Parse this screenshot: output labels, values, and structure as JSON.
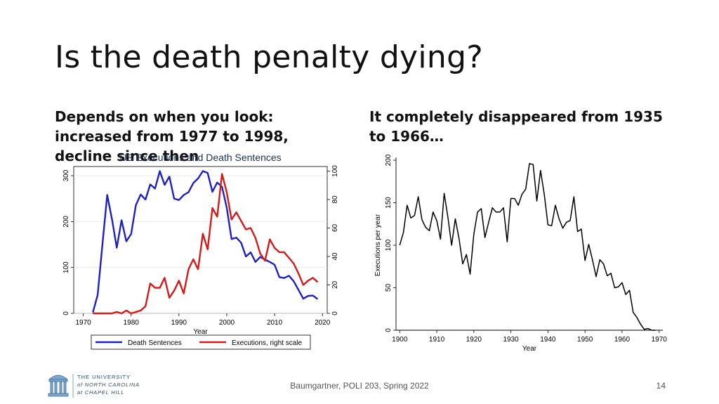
{
  "slide": {
    "title": "Is the death penalty dying?",
    "left_heading": "Depends on when you look: increased from 1977 to 1998, decline since then",
    "right_heading": "It completely disappeared from 1935 to 1966…",
    "footer": "Baumgartner, POLI 203, Spring 2022",
    "page_number": "14",
    "logo_lines": [
      "THE UNIVERSITY",
      "of NORTH CAROLINA",
      "at CHAPEL HILL"
    ]
  },
  "colors": {
    "death_sentences": "#1f1fc8",
    "executions": "#d61a1a",
    "black_line": "#000000"
  },
  "chart_data": [
    {
      "type": "line",
      "title": "US Executions and Death Sentences",
      "xlabel": "Year",
      "xlim": [
        1968,
        2021
      ],
      "xticks": [
        "1970",
        "1980",
        "1990",
        "2000",
        "2010",
        "2020"
      ],
      "y_left": {
        "lim": [
          0,
          320
        ],
        "ticks": [
          "0",
          "100",
          "200",
          "300"
        ]
      },
      "y_right": {
        "lim": [
          0,
          103.2
        ],
        "ticks": [
          "0",
          "20",
          "40",
          "60",
          "80",
          "100"
        ]
      },
      "legend": {
        "placement": "bottom",
        "entries": [
          "Death Sentences",
          "Executions, right scale"
        ]
      },
      "series": [
        {
          "name": "Death Sentences",
          "axis": "left",
          "x": [
            1972,
            1973,
            1974,
            1975,
            1976,
            1977,
            1978,
            1979,
            1980,
            1981,
            1982,
            1983,
            1984,
            1985,
            1986,
            1987,
            1988,
            1989,
            1990,
            1991,
            1992,
            1993,
            1994,
            1995,
            1996,
            1997,
            1998,
            1999,
            2000,
            2001,
            2002,
            2003,
            2004,
            2005,
            2006,
            2007,
            2008,
            2009,
            2010,
            2011,
            2012,
            2013,
            2014,
            2015,
            2016,
            2017,
            2018,
            2019
          ],
          "y": [
            2,
            40,
            150,
            258,
            205,
            143,
            203,
            157,
            173,
            236,
            259,
            248,
            281,
            272,
            310,
            280,
            298,
            250,
            247,
            258,
            264,
            284,
            294,
            310,
            306,
            265,
            285,
            276,
            230,
            162,
            165,
            154,
            124,
            133,
            112,
            123,
            117,
            112,
            106,
            79,
            77,
            82,
            70,
            51,
            32,
            38,
            39,
            31
          ]
        },
        {
          "name": "Executions, right scale",
          "axis": "right",
          "x": [
            1972,
            1973,
            1974,
            1975,
            1976,
            1977,
            1978,
            1979,
            1980,
            1981,
            1982,
            1983,
            1984,
            1985,
            1986,
            1987,
            1988,
            1989,
            1990,
            1991,
            1992,
            1993,
            1994,
            1995,
            1996,
            1997,
            1998,
            1999,
            2000,
            2001,
            2002,
            2003,
            2004,
            2005,
            2006,
            2007,
            2008,
            2009,
            2010,
            2011,
            2012,
            2013,
            2014,
            2015,
            2016,
            2017,
            2018,
            2019
          ],
          "y": [
            0,
            0,
            0,
            0,
            0,
            1,
            0,
            2,
            0,
            1,
            2,
            5,
            21,
            18,
            18,
            25,
            11,
            16,
            23,
            14,
            31,
            38,
            31,
            56,
            45,
            74,
            68,
            98,
            85,
            66,
            71,
            65,
            59,
            60,
            53,
            42,
            37,
            52,
            46,
            43,
            43,
            39,
            35,
            28,
            20,
            23,
            25,
            22
          ]
        }
      ]
    },
    {
      "type": "line",
      "title": "",
      "xlabel": "Year",
      "ylabel": "Executions per year",
      "xlim": [
        1899,
        1971
      ],
      "ylim": [
        0,
        200
      ],
      "xticks": [
        "1900",
        "1910",
        "1920",
        "1930",
        "1940",
        "1950",
        "1960",
        "1970"
      ],
      "yticks": [
        "0",
        "50",
        "100",
        "150",
        "200"
      ],
      "series": [
        {
          "x": [
            1900,
            1901,
            1902,
            1903,
            1904,
            1905,
            1906,
            1907,
            1908,
            1909,
            1910,
            1911,
            1912,
            1913,
            1914,
            1915,
            1916,
            1917,
            1918,
            1919,
            1920,
            1921,
            1922,
            1923,
            1924,
            1925,
            1926,
            1927,
            1928,
            1929,
            1930,
            1931,
            1932,
            1933,
            1934,
            1935,
            1936,
            1937,
            1938,
            1939,
            1940,
            1941,
            1942,
            1943,
            1944,
            1945,
            1946,
            1947,
            1948,
            1949,
            1950,
            1951,
            1952,
            1953,
            1954,
            1955,
            1956,
            1957,
            1958,
            1959,
            1960,
            1961,
            1962,
            1963,
            1964,
            1965,
            1966,
            1967,
            1968,
            1969
          ],
          "y": [
            100,
            115,
            147,
            132,
            135,
            157,
            130,
            121,
            117,
            139,
            129,
            107,
            161,
            133,
            100,
            131,
            108,
            78,
            89,
            66,
            113,
            139,
            143,
            109,
            127,
            144,
            139,
            139,
            144,
            104,
            155,
            155,
            147,
            160,
            166,
            196,
            195,
            152,
            188,
            160,
            124,
            123,
            147,
            131,
            120,
            127,
            129,
            157,
            116,
            119,
            82,
            101,
            83,
            63,
            83,
            78,
            64,
            67,
            50,
            51,
            56,
            42,
            47,
            21,
            15,
            7,
            1,
            2,
            0,
            0
          ]
        }
      ]
    }
  ]
}
